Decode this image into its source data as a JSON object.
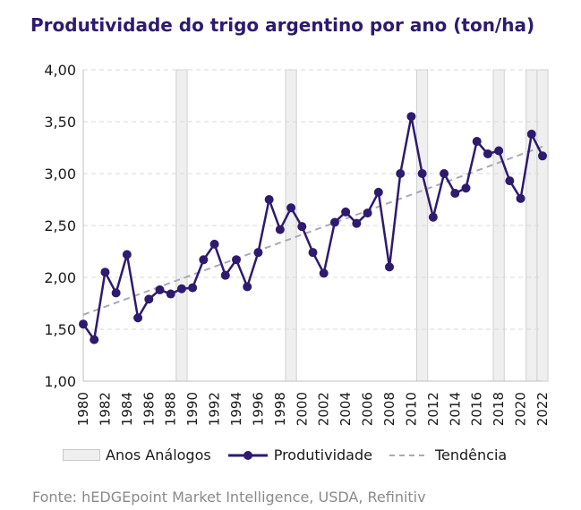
{
  "chart_data": {
    "type": "line",
    "title": "Produtividade do trigo argentino por ano (ton/ha)",
    "xlabel": "",
    "ylabel": "",
    "ylim": [
      1.0,
      4.0
    ],
    "yticks": [
      "1,00",
      "1,50",
      "2,00",
      "2,50",
      "3,00",
      "3,50",
      "4,00"
    ],
    "xlim": [
      1980,
      2022
    ],
    "xticks": [
      "1980",
      "1982",
      "1984",
      "1986",
      "1988",
      "1990",
      "1992",
      "1994",
      "1996",
      "1998",
      "2000",
      "2002",
      "2004",
      "2006",
      "2008",
      "2010",
      "2012",
      "2014",
      "2016",
      "2018",
      "2020",
      "2022"
    ],
    "grid": true,
    "legend_position": "bottom",
    "x": [
      1980,
      1981,
      1982,
      1983,
      1984,
      1985,
      1986,
      1987,
      1988,
      1989,
      1990,
      1991,
      1992,
      1993,
      1994,
      1995,
      1996,
      1997,
      1998,
      1999,
      2000,
      2001,
      2002,
      2003,
      2004,
      2005,
      2006,
      2007,
      2008,
      2009,
      2010,
      2011,
      2012,
      2013,
      2014,
      2015,
      2016,
      2017,
      2018,
      2019,
      2020,
      2021,
      2022
    ],
    "series": [
      {
        "name": "Produtividade",
        "color": "#2e1a6e",
        "values": [
          1.55,
          1.4,
          2.05,
          1.85,
          2.22,
          1.61,
          1.79,
          1.88,
          1.84,
          1.89,
          1.9,
          2.17,
          2.32,
          2.02,
          2.17,
          1.91,
          2.24,
          2.75,
          2.46,
          2.67,
          2.49,
          2.24,
          2.04,
          2.53,
          2.63,
          2.52,
          2.62,
          2.82,
          2.1,
          3.0,
          3.55,
          3.0,
          2.58,
          3.0,
          2.81,
          2.86,
          3.31,
          3.19,
          3.22,
          2.93,
          2.76,
          3.38,
          3.17
        ]
      },
      {
        "name": "Tendência",
        "color": "#a9a9b8",
        "style": "dashed",
        "x": [
          1980,
          2022
        ],
        "values": [
          1.64,
          3.26
        ]
      }
    ],
    "highlighted_years": {
      "name": "Anos Análogos",
      "color": "#efefef",
      "years": [
        1989,
        1999,
        2011,
        2018,
        2021,
        2022
      ]
    }
  },
  "legend": {
    "analogos": "Anos Análogos",
    "produtividade": "Produtividade",
    "tendencia": "Tendência"
  },
  "source": "Fonte: hEDGEpoint Market Intelligence, USDA, Refinitiv"
}
